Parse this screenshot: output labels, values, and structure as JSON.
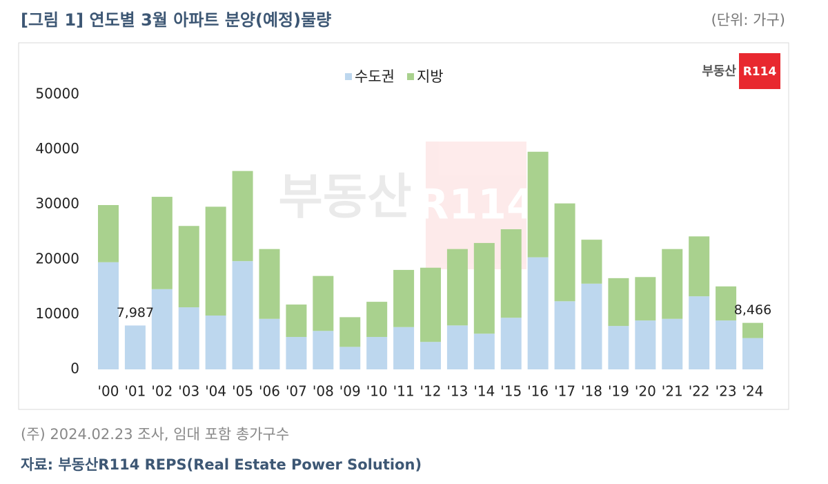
{
  "chart_data": {
    "type": "stacked_bar",
    "title": "[그림 1] 연도별 3월 아파트 분양(예정)물량",
    "unit": "(단위: 가구)",
    "note": "(주) 2024.02.23 조사, 임대 포함 총가구수",
    "source": "자료: 부동산R114 REPS(Real Estate Power Solution)",
    "logo": {
      "text": "부동산",
      "badge": "R114"
    },
    "categories": [
      "'00",
      "'01",
      "'02",
      "'03",
      "'04",
      "'05",
      "'06",
      "'07",
      "'08",
      "'09",
      "'10",
      "'11",
      "'12",
      "'13",
      "'14",
      "'15",
      "'16",
      "'17",
      "'18",
      "'19",
      "'20",
      "'21",
      "'22",
      "'23",
      "'24"
    ],
    "series": [
      {
        "name": "수도권",
        "color": "#bdd7ee",
        "values": [
          19500,
          7987,
          14600,
          11300,
          9800,
          19700,
          9200,
          5900,
          7000,
          4100,
          5900,
          7700,
          5000,
          8000,
          6500,
          9400,
          20400,
          12400,
          15600,
          7900,
          8900,
          9200,
          13300,
          8900,
          5700
        ]
      },
      {
        "name": "지방",
        "color": "#a9d18e",
        "values": [
          10400,
          0,
          16800,
          14800,
          19800,
          16400,
          12700,
          5900,
          10000,
          5400,
          6400,
          10400,
          13500,
          13900,
          16500,
          16100,
          19200,
          17800,
          8000,
          8700,
          7900,
          12700,
          10900,
          6200,
          2766
        ]
      }
    ],
    "annotations": [
      {
        "x": "'01",
        "value": 7987,
        "label": "7,987"
      },
      {
        "x": "'24",
        "value": 8466,
        "label": "8,466"
      }
    ],
    "ylim": [
      0,
      50000
    ],
    "yticks": [
      0,
      10000,
      20000,
      30000,
      40000,
      50000
    ],
    "grid": false,
    "legend": "top"
  }
}
